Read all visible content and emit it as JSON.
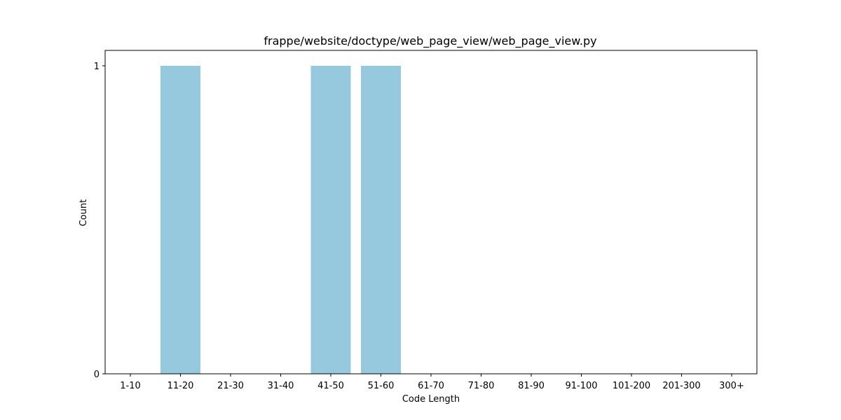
{
  "chart_data": {
    "type": "bar",
    "title": "frappe/website/doctype/web_page_view/web_page_view.py",
    "xlabel": "Code Length",
    "ylabel": "Count",
    "categories": [
      "1-10",
      "11-20",
      "21-30",
      "31-40",
      "41-50",
      "51-60",
      "61-70",
      "71-80",
      "81-90",
      "91-100",
      "101-200",
      "201-300",
      "300+"
    ],
    "values": [
      0,
      1,
      0,
      0,
      1,
      1,
      0,
      0,
      0,
      0,
      0,
      0,
      0
    ],
    "ylim": [
      0,
      1
    ],
    "yticks": [
      0,
      1
    ],
    "bar_color": "#96c9dd",
    "grid": false
  }
}
